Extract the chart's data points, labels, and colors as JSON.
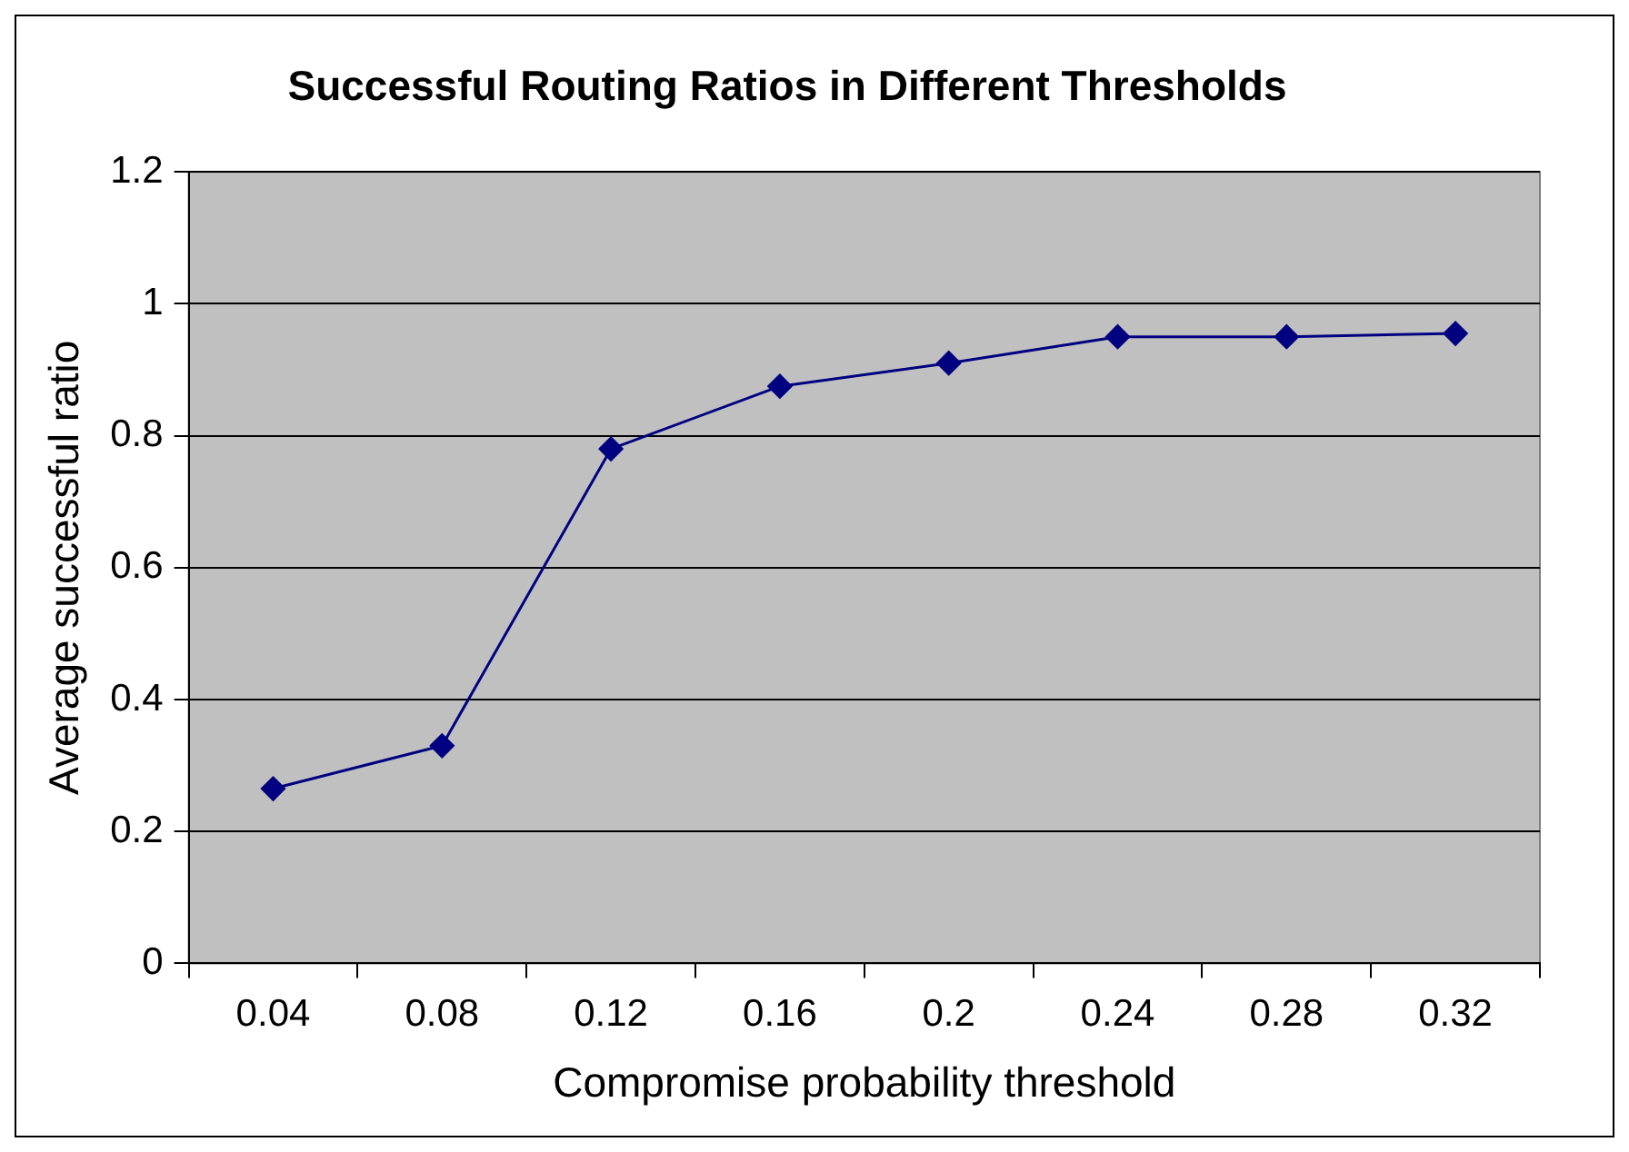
{
  "chart_data": {
    "type": "line",
    "title": "Successful Routing Ratios in Different Thresholds",
    "xlabel": "Compromise probability threshold",
    "ylabel": "Average successful ratio",
    "categories": [
      "0.04",
      "0.08",
      "0.12",
      "0.16",
      "0.2",
      "0.24",
      "0.28",
      "0.32"
    ],
    "series": [
      {
        "color": "#000080",
        "values": [
          0.265,
          0.33,
          0.78,
          0.875,
          0.91,
          0.95,
          0.95,
          0.955
        ]
      }
    ],
    "ylim": [
      0,
      1.2
    ],
    "yticks": [
      0,
      0.2,
      0.4,
      0.6,
      0.8,
      1,
      1.2
    ],
    "grid": "y",
    "legend": false,
    "marker": "diamond",
    "line_style": "solid"
  }
}
